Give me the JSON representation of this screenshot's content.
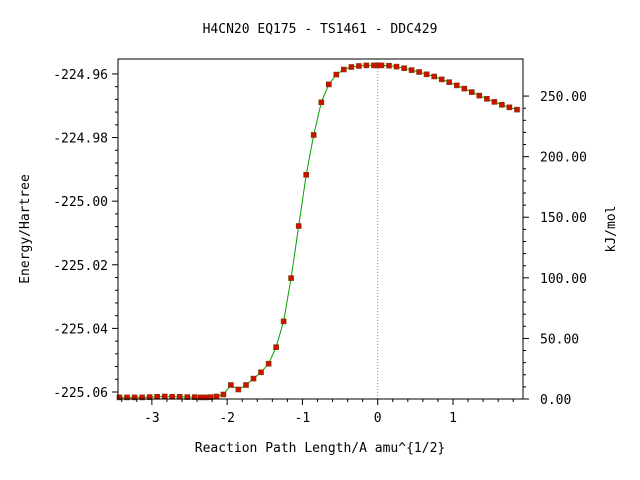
{
  "chart_data": {
    "type": "scatter",
    "title": "H4CN20   EQ175 - TS1461 - DDC429",
    "xlabel": "Reaction Path Length/A amu^{1/2}",
    "ylabel": "Energy/Hartree",
    "y2label": "kJ/mol",
    "xlim": [
      -3.45,
      1.93
    ],
    "ylim": [
      -225.0622,
      -224.9553
    ],
    "y2lim": [
      0.0,
      280.6
    ],
    "x_ticks": [
      -3,
      -2,
      -1,
      0,
      1
    ],
    "y_ticks": [
      -225.06,
      -225.04,
      -225.02,
      -225.0,
      -224.98,
      -224.96
    ],
    "y_tick_labels": [
      "-225.06",
      "-225.04",
      "-225.02",
      "-225.00",
      "-224.98",
      "-224.96"
    ],
    "y2_ticks": [
      0,
      50,
      100,
      150,
      200,
      250
    ],
    "y2_tick_labels": [
      "0.00",
      "50.00",
      "100.00",
      "150.00",
      "200.00",
      "250.00"
    ],
    "ts_marker_x": 0,
    "colors": {
      "line": "#00a000",
      "points": "#d01000",
      "points_edge": "#7a3a00",
      "ts_line": "#909090"
    },
    "series": [
      {
        "x": [
          -3.43,
          -3.33,
          -3.23,
          -3.13,
          -3.03,
          -2.93,
          -2.83,
          -2.73,
          -2.63,
          -2.53,
          -2.43,
          -2.35,
          -2.28,
          -2.22,
          -2.14,
          -2.05,
          -1.95,
          -1.85,
          -1.75,
          -1.65,
          -1.55,
          -1.45,
          -1.35,
          -1.25,
          -1.15,
          -1.05,
          -0.95,
          -0.85,
          -0.75,
          -0.65,
          -0.55,
          -0.45,
          -0.35,
          -0.25,
          -0.15,
          -0.05,
          0.0,
          0.05,
          0.15,
          0.25,
          0.35,
          0.45,
          0.55,
          0.65,
          0.75,
          0.85,
          0.95,
          1.05,
          1.15,
          1.25,
          1.35,
          1.45,
          1.55,
          1.65,
          1.75,
          1.85
        ],
        "y": [
          -225.0617,
          -225.0617,
          -225.0617,
          -225.0617,
          -225.0616,
          -225.0615,
          -225.0614,
          -225.0615,
          -225.0615,
          -225.0616,
          -225.0616,
          -225.0617,
          -225.0617,
          -225.0616,
          -225.0614,
          -225.0608,
          -225.0578,
          -225.0592,
          -225.0578,
          -225.0558,
          -225.0538,
          -225.0511,
          -225.0459,
          -225.0378,
          -225.0242,
          -225.0078,
          -224.9917,
          -224.9792,
          -224.9689,
          -224.9633,
          -224.9602,
          -224.9586,
          -224.9578,
          -224.9575,
          -224.9573,
          -224.9573,
          -224.9573,
          -224.9573,
          -224.9574,
          -224.9577,
          -224.9582,
          -224.9588,
          -224.9594,
          -224.9601,
          -224.9608,
          -224.9617,
          -224.9626,
          -224.9636,
          -224.9646,
          -224.9657,
          -224.9668,
          -224.9678,
          -224.9688,
          -224.9697,
          -224.9705,
          -224.9712
        ]
      }
    ]
  }
}
